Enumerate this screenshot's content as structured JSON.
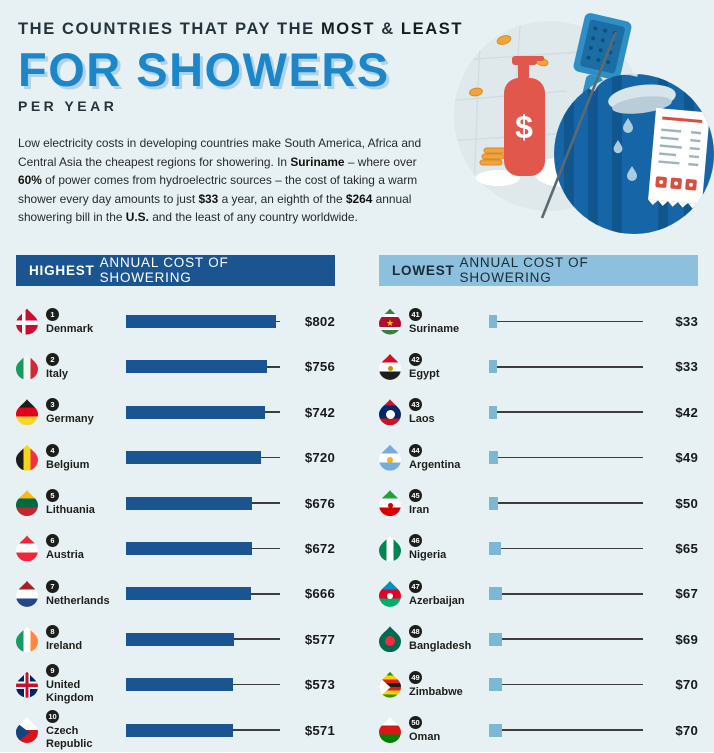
{
  "colors": {
    "background": "#e7f0f2",
    "title_blue": "#1d86c9",
    "title_shadow": "#aed2e8",
    "dark_blue": "#1a5591",
    "light_blue": "#8cc0dc",
    "highest_bar": "#1a5591",
    "lowest_bar": "#7db7d8",
    "connector": "#3d3d3d",
    "badge": "#1d1d1b"
  },
  "header": {
    "kicker_segments": [
      {
        "t": "THE COUNTRIES THAT PAY THE ",
        "b": false
      },
      {
        "t": "MOST",
        "b": true
      },
      {
        "t": " & ",
        "b": false
      },
      {
        "t": "LEAST",
        "b": true
      }
    ],
    "title": "FOR SHOWERS",
    "subtitle": "PER YEAR"
  },
  "intro_segments": [
    {
      "t": "Low electricity costs in developing countries make South America, Africa and Central Asia the cheapest regions for showering. In ",
      "b": false
    },
    {
      "t": "Suriname",
      "b": true
    },
    {
      "t": " – where over ",
      "b": false
    },
    {
      "t": "60%",
      "b": true
    },
    {
      "t": " of power comes from hydroelectric sources – the cost of taking a warm shower every day amounts to just ",
      "b": false
    },
    {
      "t": "$33",
      "b": true
    },
    {
      "t": " a year, an eighth of the ",
      "b": false
    },
    {
      "t": "$264",
      "b": true
    },
    {
      "t": " annual showering bill in the ",
      "b": false
    },
    {
      "t": "U.S.",
      "b": true
    },
    {
      "t": " and the least of any country worldwide.",
      "b": false
    }
  ],
  "illustration": {
    "name": "shower-cost-illustration",
    "left_circle_color": "#dfe9ec",
    "right_circle_color": "#1666a7",
    "bottle_color": "#e2574c",
    "coin_color": "#f0a43c",
    "handle_color": "#2e8fc4"
  },
  "columns": {
    "highest": {
      "heading": {
        "bold": "HIGHEST",
        "rest": "ANNUAL COST OF SHOWERING"
      },
      "rows": [
        {
          "rank": "1",
          "country": "Denmark",
          "value": 802,
          "value_label": "$802",
          "flag": {
            "dir": "h",
            "colors": [
              "#c8102e"
            ],
            "emblem": "white-cross"
          }
        },
        {
          "rank": "2",
          "country": "Italy",
          "value": 756,
          "value_label": "$756",
          "flag": {
            "dir": "v",
            "colors": [
              "#169b62",
              "#f4f5f0",
              "#ce2b37"
            ]
          }
        },
        {
          "rank": "3",
          "country": "Germany",
          "value": 742,
          "value_label": "$742",
          "flag": {
            "dir": "h",
            "colors": [
              "#1d1d1b",
              "#e1001f",
              "#f6d928"
            ]
          }
        },
        {
          "rank": "4",
          "country": "Belgium",
          "value": 720,
          "value_label": "$720",
          "flag": {
            "dir": "v",
            "colors": [
              "#1d1d1b",
              "#f7d618",
              "#ef3340"
            ]
          }
        },
        {
          "rank": "5",
          "country": "Lithuania",
          "value": 676,
          "value_label": "$676",
          "flag": {
            "dir": "h",
            "colors": [
              "#fdb913",
              "#006a44",
              "#c1272d"
            ]
          }
        },
        {
          "rank": "6",
          "country": "Austria",
          "value": 672,
          "value_label": "$672",
          "flag": {
            "dir": "h",
            "colors": [
              "#ed2939",
              "#ffffff",
              "#ed2939"
            ]
          }
        },
        {
          "rank": "7",
          "country": "Netherlands",
          "value": 666,
          "value_label": "$666",
          "flag": {
            "dir": "h",
            "colors": [
              "#ae1c28",
              "#ffffff",
              "#21468b"
            ]
          }
        },
        {
          "rank": "8",
          "country": "Ireland",
          "value": 577,
          "value_label": "$577",
          "flag": {
            "dir": "v",
            "colors": [
              "#169b62",
              "#ffffff",
              "#ff883e"
            ]
          }
        },
        {
          "rank": "9",
          "country": "United Kingdom",
          "value": 573,
          "value_label": "$573",
          "flag": {
            "dir": "h",
            "colors": [
              "#012169"
            ],
            "emblem": "union-jack"
          }
        },
        {
          "rank": "10",
          "country": "Czech Republic",
          "value": 571,
          "value_label": "$571",
          "flag": {
            "dir": "h",
            "colors": [
              "#ffffff",
              "#d7141a"
            ],
            "emblem": "blue-wedge"
          }
        }
      ]
    },
    "lowest": {
      "heading": {
        "bold": "LOWEST",
        "rest": "ANNUAL COST OF SHOWERING"
      },
      "rows": [
        {
          "rank": "41",
          "country": "Suriname",
          "value": 33,
          "value_label": "$33",
          "flag": {
            "dir": "h",
            "colors": [
              "#377e3f",
              "#ffffff",
              "#b40a2d",
              "#ffffff",
              "#377e3f"
            ],
            "weights": [
              2,
              1,
              4,
              1,
              2
            ],
            "emblem": "yellow-star"
          }
        },
        {
          "rank": "42",
          "country": "Egypt",
          "value": 33,
          "value_label": "$33",
          "flag": {
            "dir": "h",
            "colors": [
              "#ce1126",
              "#ffffff",
              "#1d1d1b"
            ],
            "emblem": "gold-dot"
          }
        },
        {
          "rank": "43",
          "country": "Laos",
          "value": 42,
          "value_label": "$42",
          "flag": {
            "dir": "h",
            "colors": [
              "#ce1126",
              "#002868",
              "#ce1126"
            ],
            "weights": [
              1,
              2,
              1
            ],
            "emblem": "white-circle"
          }
        },
        {
          "rank": "44",
          "country": "Argentina",
          "value": 49,
          "value_label": "$49",
          "flag": {
            "dir": "h",
            "colors": [
              "#74acdf",
              "#ffffff",
              "#74acdf"
            ],
            "emblem": "sun-dot"
          }
        },
        {
          "rank": "45",
          "country": "Iran",
          "value": 50,
          "value_label": "$50",
          "flag": {
            "dir": "h",
            "colors": [
              "#239f40",
              "#ffffff",
              "#da0000"
            ],
            "emblem": "red-dot"
          }
        },
        {
          "rank": "46",
          "country": "Nigeria",
          "value": 65,
          "value_label": "$65",
          "flag": {
            "dir": "v",
            "colors": [
              "#008751",
              "#ffffff",
              "#008751"
            ]
          }
        },
        {
          "rank": "47",
          "country": "Azerbaijan",
          "value": 67,
          "value_label": "$67",
          "flag": {
            "dir": "h",
            "colors": [
              "#0092bc",
              "#e4002b",
              "#00af66"
            ],
            "emblem": "white-dot"
          }
        },
        {
          "rank": "48",
          "country": "Bangladesh",
          "value": 69,
          "value_label": "$69",
          "flag": {
            "dir": "h",
            "colors": [
              "#006a4e"
            ],
            "emblem": "red-circle"
          }
        },
        {
          "rank": "49",
          "country": "Zimbabwe",
          "value": 70,
          "value_label": "$70",
          "flag": {
            "dir": "h",
            "colors": [
              "#319208",
              "#ffd200",
              "#de2010",
              "#1d1d1b",
              "#de2010",
              "#ffd200",
              "#319208"
            ],
            "emblem": "white-wedge"
          }
        },
        {
          "rank": "50",
          "country": "Oman",
          "value": 70,
          "value_label": "$70",
          "flag": {
            "dir": "h",
            "colors": [
              "#ffffff",
              "#db161b",
              "#008000"
            ]
          }
        }
      ]
    }
  },
  "chart_data": [
    {
      "type": "bar",
      "orientation": "horizontal",
      "title": "HIGHEST ANNUAL COST OF SHOWERING",
      "unit": "USD per year",
      "categories": [
        "Denmark",
        "Italy",
        "Germany",
        "Belgium",
        "Lithuania",
        "Austria",
        "Netherlands",
        "Ireland",
        "United Kingdom",
        "Czech Republic"
      ],
      "values": [
        802,
        756,
        742,
        720,
        676,
        672,
        666,
        577,
        573,
        571
      ],
      "ranks": [
        1,
        2,
        3,
        4,
        5,
        6,
        7,
        8,
        9,
        10
      ],
      "data_labels": [
        "$802",
        "$756",
        "$742",
        "$720",
        "$676",
        "$672",
        "$666",
        "$577",
        "$573",
        "$571"
      ],
      "xlim": [
        0,
        802
      ],
      "grid": false,
      "bar_color": "#1a5591"
    },
    {
      "type": "bar",
      "orientation": "horizontal",
      "title": "LOWEST ANNUAL COST OF SHOWERING",
      "unit": "USD per year",
      "categories": [
        "Suriname",
        "Egypt",
        "Laos",
        "Argentina",
        "Iran",
        "Nigeria",
        "Azerbaijan",
        "Bangladesh",
        "Zimbabwe",
        "Oman"
      ],
      "values": [
        33,
        33,
        42,
        49,
        50,
        65,
        67,
        69,
        70,
        70
      ],
      "ranks": [
        41,
        42,
        43,
        44,
        45,
        46,
        47,
        48,
        49,
        50
      ],
      "data_labels": [
        "$33",
        "$33",
        "$42",
        "$49",
        "$50",
        "$65",
        "$67",
        "$69",
        "$70",
        "$70"
      ],
      "xlim": [
        0,
        802
      ],
      "grid": false,
      "bar_color": "#7db7d8"
    }
  ]
}
